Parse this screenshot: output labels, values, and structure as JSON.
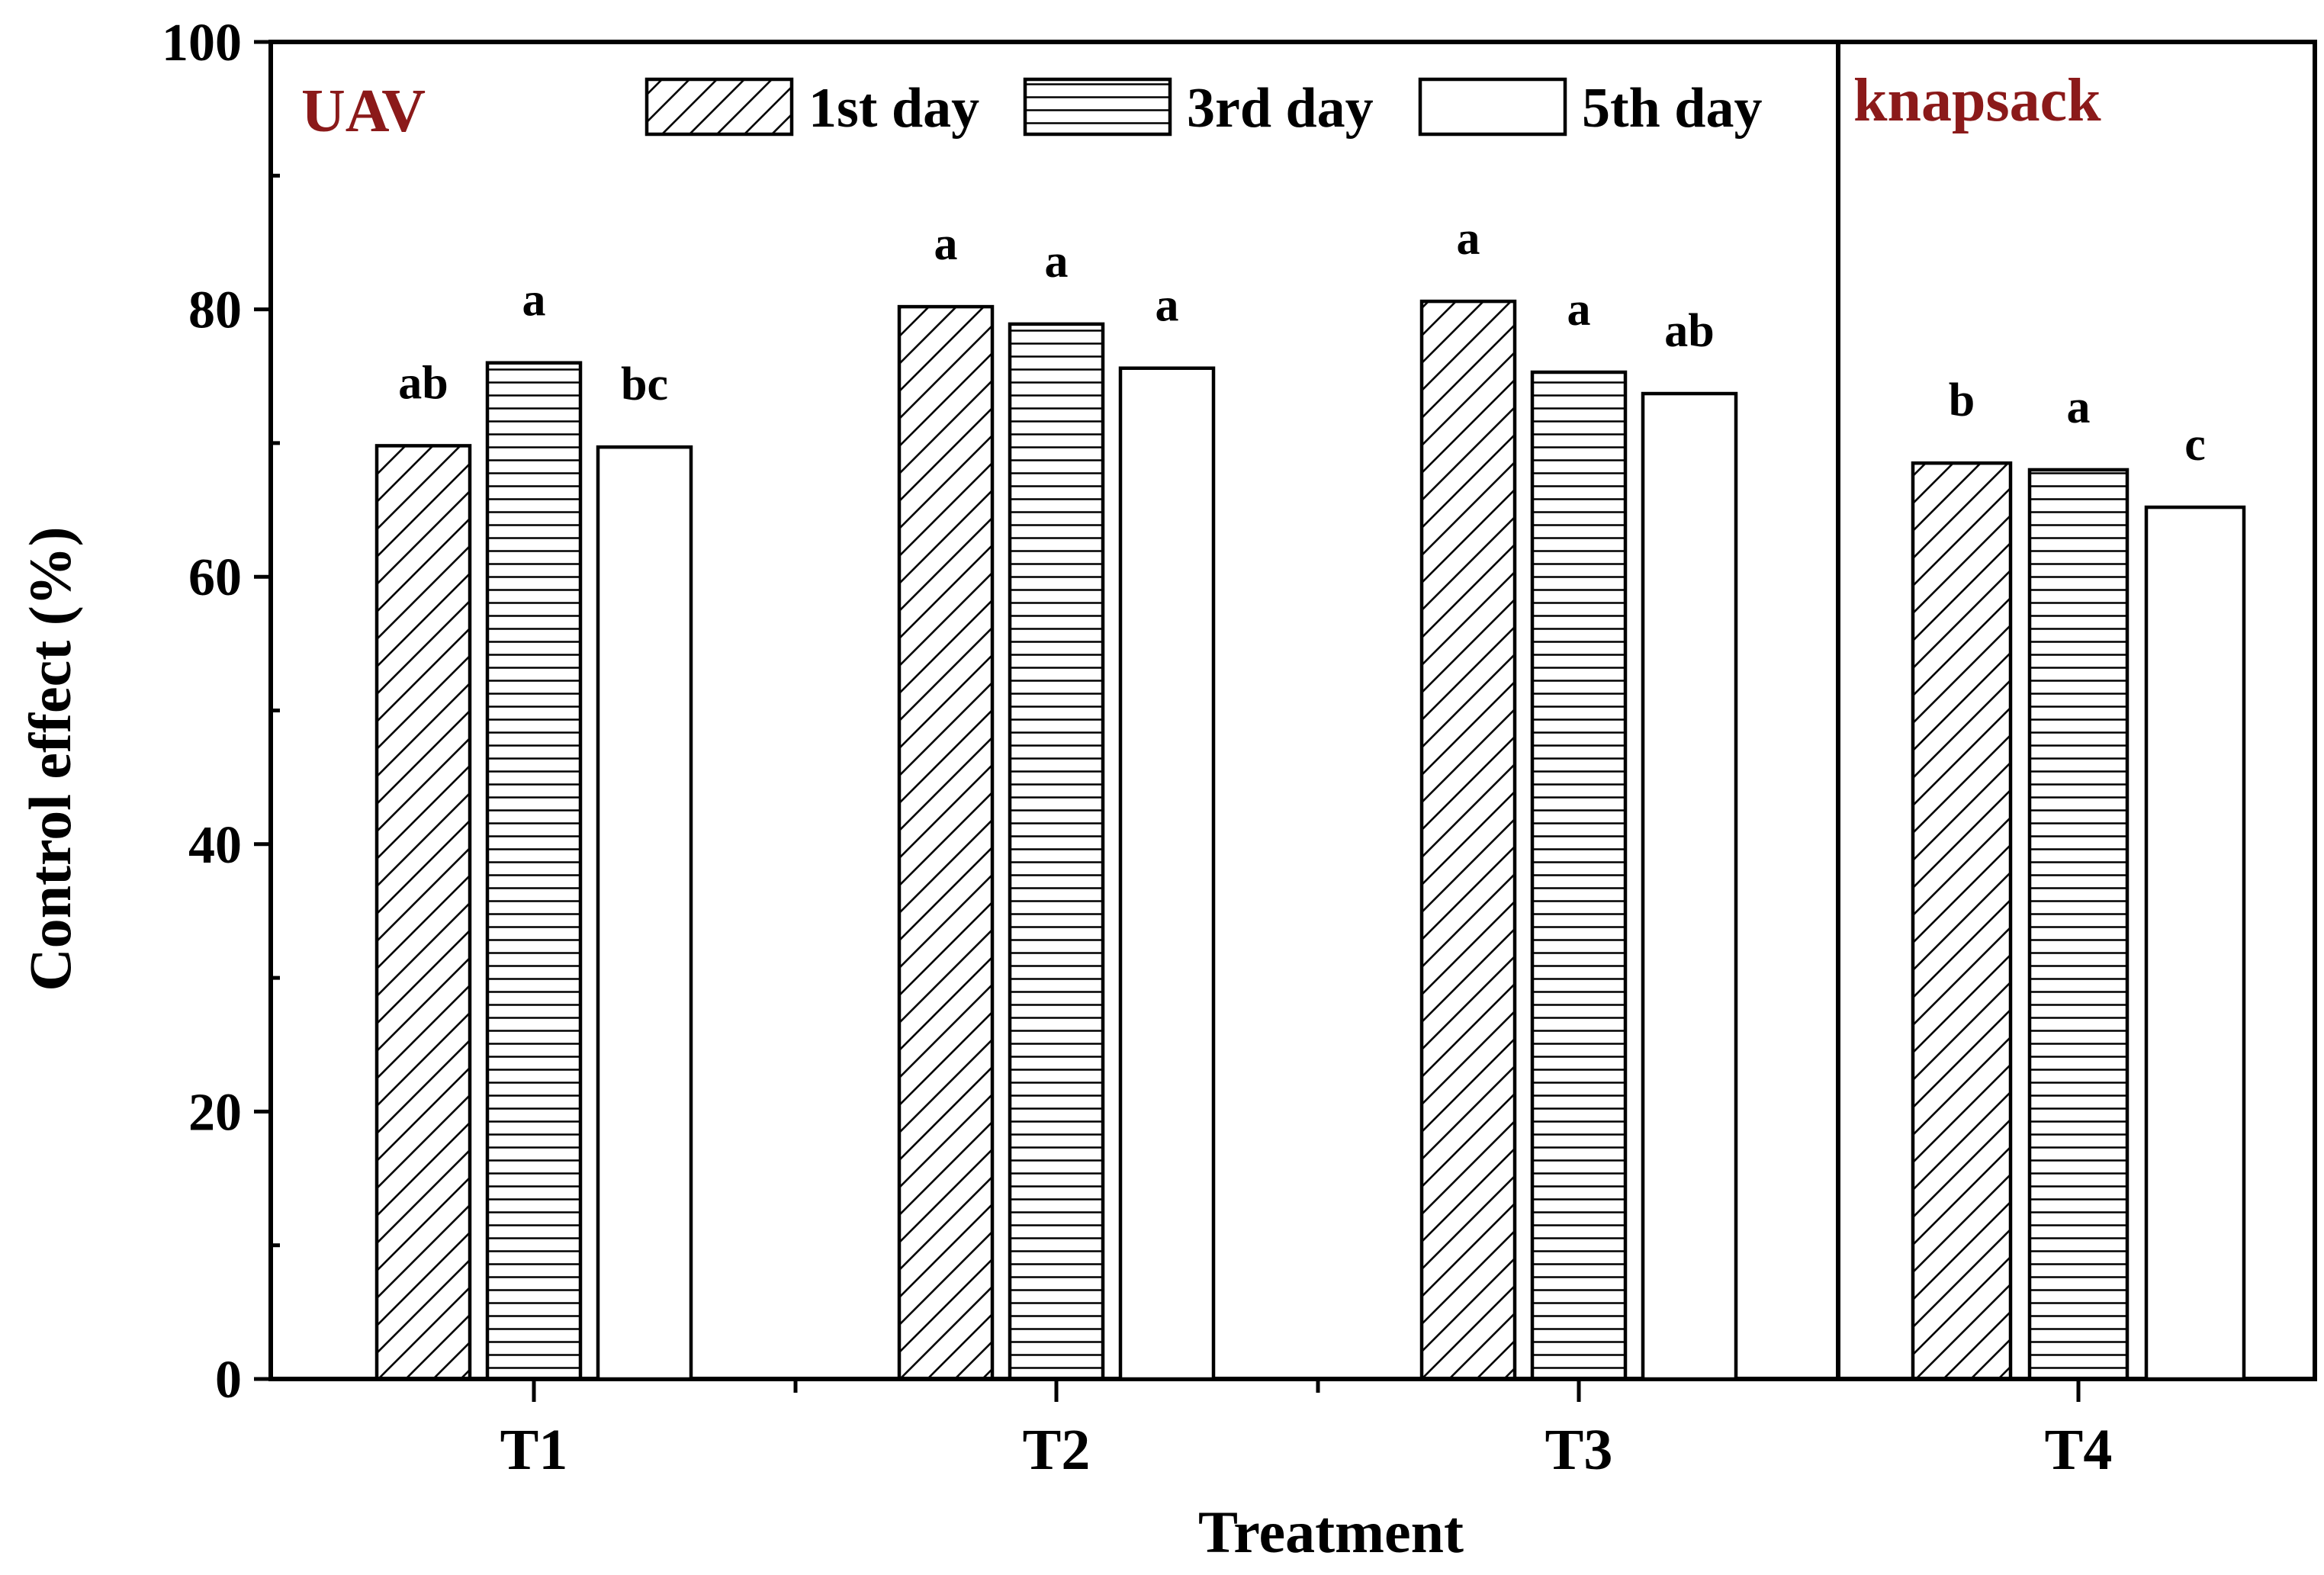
{
  "chart_data": {
    "type": "bar",
    "title": "",
    "xlabel": "Treatment",
    "ylabel": "Control effect (%)",
    "ylim": [
      0,
      100
    ],
    "yticks": [
      "0",
      "20",
      "40",
      "60",
      "80",
      "100"
    ],
    "categories": [
      "T1",
      "T2",
      "T3",
      "T4"
    ],
    "series": [
      {
        "name": "1st day",
        "pattern": "diagonal-hatch",
        "values": [
          69.8,
          80.2,
          80.6,
          68.5
        ],
        "significance": [
          "ab",
          "a",
          "a",
          "b"
        ]
      },
      {
        "name": "3rd day",
        "pattern": "horizontal-lines",
        "values": [
          76.0,
          78.9,
          75.3,
          68.0
        ],
        "significance": [
          "a",
          "a",
          "a",
          "a"
        ]
      },
      {
        "name": "5th day",
        "pattern": "empty",
        "values": [
          69.7,
          75.6,
          73.7,
          65.2
        ],
        "significance": [
          "bc",
          "a",
          "ab",
          "c"
        ]
      }
    ],
    "groups": [
      {
        "label": "UAV",
        "color": "#8b1a1a",
        "categories": [
          "T1",
          "T2",
          "T3"
        ]
      },
      {
        "label": "knapsack",
        "color": "#8b1a1a",
        "categories": [
          "T4"
        ]
      }
    ],
    "legend_position": "top-center",
    "grid": false
  }
}
